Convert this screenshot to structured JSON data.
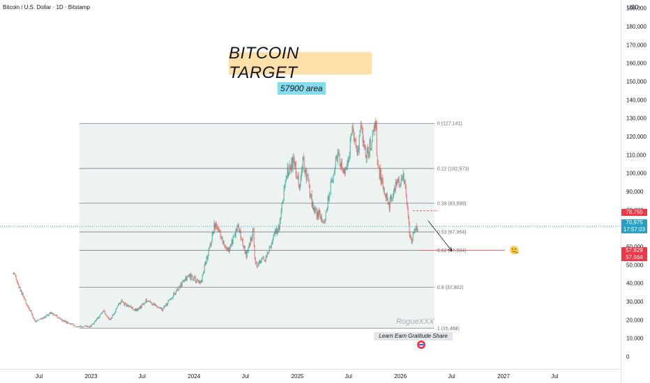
{
  "header": {
    "symbol": "Bitcoin / U.S. Dollar · 1D · Bitstamp",
    "currency": "USD"
  },
  "annotations": {
    "title": "BITCOIN TARGET",
    "subtitle": "57900 area",
    "watermark": "RogueXXX",
    "tagline": "Learn Earn Gratitude Share"
  },
  "colors": {
    "up": "#26a69a",
    "down": "#ef5350",
    "fib_fill": "#e6efec",
    "fib_line": "#787b86",
    "current_price": "#26a0c4",
    "red_tag": "#f23645",
    "title_bg": "#ffe0a8",
    "subtitle_bg": "#86dcef"
  },
  "price_tags": {
    "p78755": "78,755",
    "p70975": "70,975",
    "time": "17:57:03",
    "p57829": "57,829",
    "p57564": "57,564"
  },
  "chart_data": {
    "type": "candlestick",
    "title": "",
    "ylabel": "USD",
    "ylim": [
      -5000,
      197000
    ],
    "y_ticks": [
      0,
      10000,
      20000,
      30000,
      40000,
      50000,
      60000,
      70000,
      80000,
      90000,
      100000,
      110000,
      120000,
      130000,
      140000,
      150000,
      160000,
      170000,
      180000,
      190000
    ],
    "y_tick_labels": [
      "0",
      "10,000",
      "20,000",
      "30,000",
      "40,000",
      "50,000",
      "60,000",
      "70,000",
      "80,000",
      "90,000",
      "100,000",
      "110,000",
      "120,000",
      "130,000",
      "140,000",
      "150,000",
      "160,000",
      "170,000",
      "180,000",
      "190,000"
    ],
    "x_ticks": [
      {
        "date": "2022-07-01",
        "label": "Jul"
      },
      {
        "date": "2023-01-01",
        "label": "2023"
      },
      {
        "date": "2023-07-01",
        "label": "Jul"
      },
      {
        "date": "2024-01-01",
        "label": "2024"
      },
      {
        "date": "2024-07-01",
        "label": "Jul"
      },
      {
        "date": "2025-01-01",
        "label": "2025"
      },
      {
        "date": "2025-07-01",
        "label": "Jul"
      },
      {
        "date": "2026-01-01",
        "label": "2026"
      },
      {
        "date": "2026-07-01",
        "label": "Jul"
      },
      {
        "date": "2027-01-01",
        "label": "2027"
      },
      {
        "date": "2027-07-01",
        "label": "Jul"
      }
    ],
    "price_path": [
      [
        "2022-04-01",
        45000
      ],
      [
        "2022-05-10",
        31000
      ],
      [
        "2022-06-18",
        19000
      ],
      [
        "2022-08-15",
        24000
      ],
      [
        "2022-09-20",
        19500
      ],
      [
        "2022-11-10",
        16500
      ],
      [
        "2022-12-30",
        16500
      ],
      [
        "2023-02-15",
        24500
      ],
      [
        "2023-03-10",
        20000
      ],
      [
        "2023-04-15",
        30000
      ],
      [
        "2023-06-15",
        25000
      ],
      [
        "2023-07-15",
        31000
      ],
      [
        "2023-09-10",
        25500
      ],
      [
        "2023-10-25",
        35000
      ],
      [
        "2023-12-10",
        44000
      ],
      [
        "2024-01-25",
        40000
      ],
      [
        "2024-03-14",
        72000
      ],
      [
        "2024-05-01",
        58000
      ],
      [
        "2024-06-05",
        71000
      ],
      [
        "2024-07-05",
        55000
      ],
      [
        "2024-07-28",
        69000
      ],
      [
        "2024-08-05",
        50000
      ],
      [
        "2024-09-06",
        53000
      ],
      [
        "2024-10-28",
        72000
      ],
      [
        "2024-11-22",
        99000
      ],
      [
        "2024-12-17",
        107000
      ],
      [
        "2025-01-10",
        92000
      ],
      [
        "2025-01-21",
        108000
      ],
      [
        "2025-02-28",
        79000
      ],
      [
        "2025-04-07",
        75000
      ],
      [
        "2025-05-22",
        111000
      ],
      [
        "2025-06-22",
        100000
      ],
      [
        "2025-07-14",
        122000
      ],
      [
        "2025-08-02",
        113000
      ],
      [
        "2025-08-14",
        124000
      ],
      [
        "2025-09-01",
        108000
      ],
      [
        "2025-10-06",
        126000
      ],
      [
        "2025-10-10",
        105000
      ],
      [
        "2025-11-21",
        82000
      ],
      [
        "2025-12-10",
        92000
      ],
      [
        "2026-01-14",
        97000
      ],
      [
        "2026-02-05",
        62000
      ],
      [
        "2026-02-20",
        68000
      ],
      [
        "2026-03-05",
        71000
      ]
    ],
    "fibonacci": {
      "start_date": "2022-11-21",
      "end_date": "2026-05-01",
      "levels": [
        {
          "ratio": "0",
          "price": 127141,
          "label": "0 (127,141)"
        },
        {
          "ratio": "0.22",
          "price": 102573,
          "label": "0.22 (102,573)"
        },
        {
          "ratio": "0.39",
          "price": 83589,
          "label": "0.39 (83,589)"
        },
        {
          "ratio": "0.53",
          "price": 67954,
          "label": "0.53 (67,954)"
        },
        {
          "ratio": "0.62",
          "price": 57904,
          "label": "0.62 (57,904)"
        },
        {
          "ratio": "0.8",
          "price": 37802,
          "label": "0.8 (37,802)"
        },
        {
          "ratio": "1",
          "price": 15468,
          "label": "1 (15,468)"
        }
      ]
    },
    "current_price": 70975,
    "target_price": 57900
  }
}
